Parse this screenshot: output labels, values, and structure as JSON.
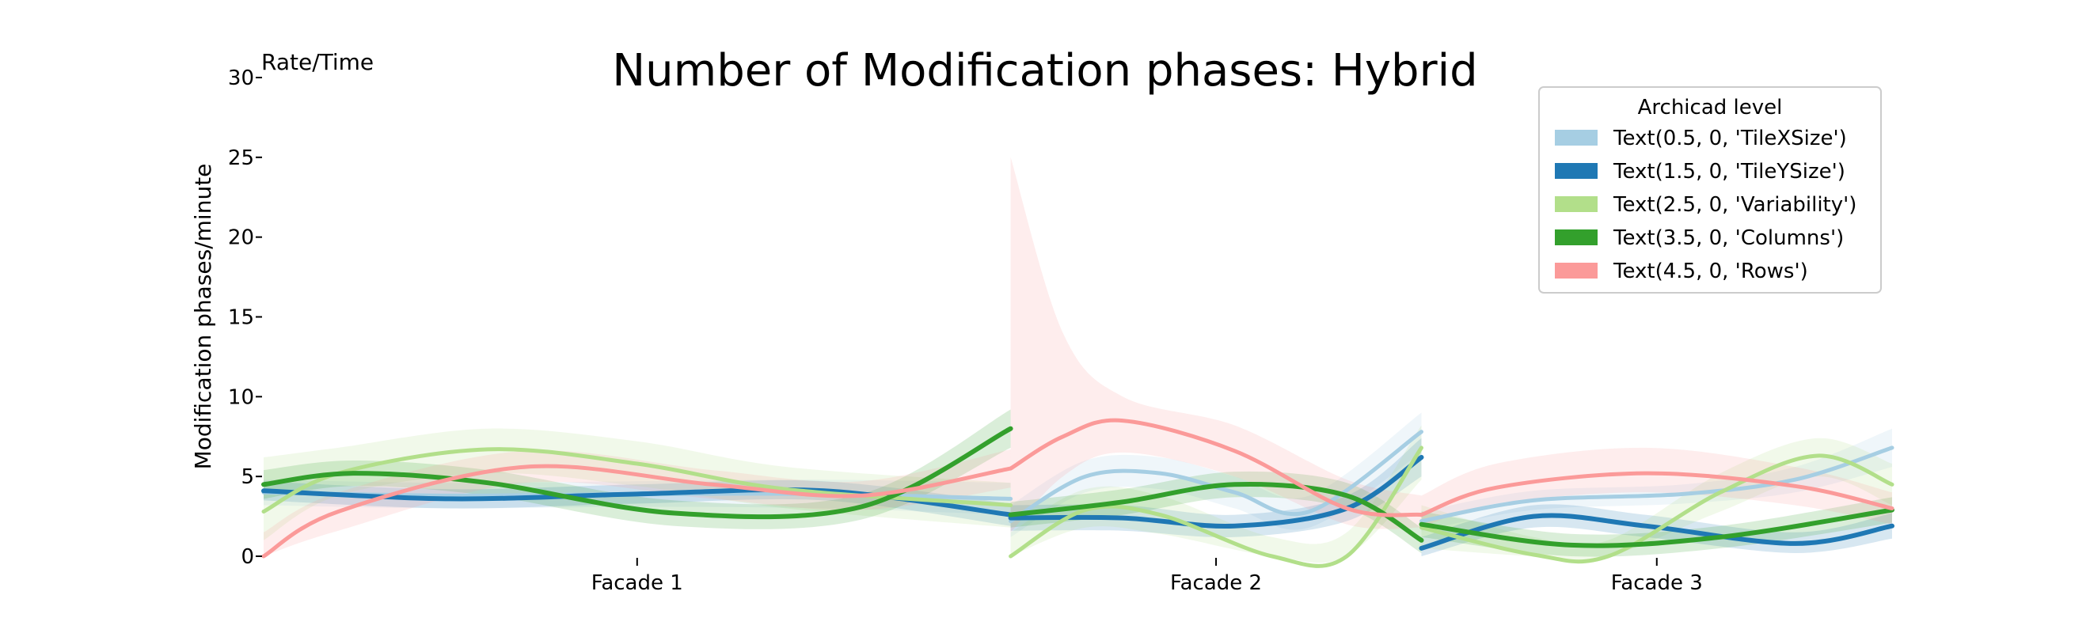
{
  "chart_data": {
    "type": "line",
    "title": "Number of Modification phases: Hybrid",
    "corner_label": "Rate/Time",
    "ylabel": "Modification phases/minute",
    "xlabel": "",
    "ylim": [
      0,
      30
    ],
    "yticks": [
      0,
      5,
      10,
      15,
      20,
      25,
      30
    ],
    "categories": [
      "Facade 1",
      "Facade 2",
      "Facade 3"
    ],
    "segments": [
      {
        "name": "Facade 1",
        "x0": 0,
        "x1": 1,
        "tick": 0.5
      },
      {
        "name": "Facade 2",
        "x0": 1,
        "x1": 1.55,
        "tick": 1.275
      },
      {
        "name": "Facade 3",
        "x0": 1.55,
        "x1": 2.18,
        "tick": 1.865
      }
    ],
    "xlim": [
      0,
      2.18
    ],
    "grid": false,
    "legend": {
      "title": "Archicad level",
      "placement": "top-right",
      "entries": [
        "Text(0.5, 0, 'TileXSize')",
        "Text(1.5, 0, 'TileYSize')",
        "Text(2.5, 0, 'Variability')",
        "Text(3.5, 0, 'Columns')",
        "Text(4.5, 0, 'Rows')"
      ]
    },
    "series": [
      {
        "color": "#a6cee3",
        "width": 5,
        "segments": [
          {
            "x": [
              0,
              0.25,
              0.5,
              0.75,
              1
            ],
            "y": [
              4.0,
              3.8,
              3.9,
              3.9,
              3.6
            ],
            "lower": [
              3.2,
              3.0,
              3.1,
              3.0,
              2.6
            ],
            "upper": [
              4.8,
              4.6,
              4.7,
              4.8,
              4.6
            ]
          },
          {
            "x": [
              1,
              1.1,
              1.2,
              1.3,
              1.4,
              1.55
            ],
            "y": [
              2.2,
              5.0,
              5.2,
              4.0,
              2.8,
              7.8
            ],
            "lower": [
              1.2,
              4.0,
              4.2,
              3.0,
              1.8,
              6.5
            ],
            "upper": [
              3.2,
              6.0,
              6.2,
              5.0,
              3.8,
              9.0
            ]
          },
          {
            "x": [
              1.55,
              1.7,
              1.9,
              2.05,
              2.18
            ],
            "y": [
              2.2,
              3.5,
              3.9,
              4.8,
              6.8
            ],
            "lower": [
              1.6,
              2.9,
              3.3,
              4.0,
              5.6
            ],
            "upper": [
              2.8,
              4.1,
              4.5,
              5.6,
              8.0
            ]
          }
        ]
      },
      {
        "color": "#1f78b4",
        "width": 6,
        "segments": [
          {
            "x": [
              0,
              0.25,
              0.5,
              0.75,
              1
            ],
            "y": [
              4.1,
              3.6,
              3.9,
              4.1,
              2.6
            ],
            "lower": [
              3.5,
              3.0,
              3.3,
              3.5,
              1.9
            ],
            "upper": [
              4.7,
              4.2,
              4.5,
              4.7,
              3.3
            ]
          },
          {
            "x": [
              1,
              1.15,
              1.3,
              1.45,
              1.55
            ],
            "y": [
              2.4,
              2.4,
              1.9,
              3.0,
              6.2
            ],
            "lower": [
              1.6,
              1.6,
              1.2,
              2.2,
              5.0
            ],
            "upper": [
              3.2,
              3.2,
              2.6,
              3.8,
              7.4
            ]
          },
          {
            "x": [
              1.55,
              1.7,
              1.85,
              2.05,
              2.18
            ],
            "y": [
              0.5,
              2.5,
              1.9,
              0.8,
              1.9
            ],
            "lower": [
              0.0,
              1.8,
              1.2,
              0.2,
              1.1
            ],
            "upper": [
              1.2,
              3.2,
              2.6,
              1.5,
              2.7
            ]
          }
        ]
      },
      {
        "color": "#b2df8a",
        "width": 5,
        "segments": [
          {
            "x": [
              0,
              0.1,
              0.3,
              0.5,
              0.7,
              1
            ],
            "y": [
              2.8,
              5.2,
              6.7,
              5.8,
              4.2,
              3.2
            ],
            "lower": [
              1.0,
              3.8,
              5.2,
              4.4,
              3.0,
              1.8
            ],
            "upper": [
              6.2,
              6.8,
              8.0,
              7.2,
              5.6,
              4.6
            ]
          },
          {
            "x": [
              1,
              1.1,
              1.2,
              1.35,
              1.45,
              1.55
            ],
            "y": [
              0.0,
              2.9,
              2.6,
              0.0,
              0.0,
              6.8
            ],
            "lower": [
              0.0,
              1.8,
              1.4,
              0.0,
              0.0,
              4.8
            ],
            "upper": [
              1.5,
              4.2,
              3.8,
              1.2,
              1.5,
              8.2
            ]
          },
          {
            "x": [
              1.55,
              1.7,
              1.8,
              1.95,
              2.08,
              2.18
            ],
            "y": [
              1.8,
              0.1,
              0.0,
              4.0,
              6.3,
              4.5
            ],
            "lower": [
              0.5,
              0.0,
              0.0,
              2.8,
              5.0,
              3.2
            ],
            "upper": [
              3.2,
              1.2,
              1.0,
              5.2,
              7.4,
              5.8
            ]
          }
        ]
      },
      {
        "color": "#33a02c",
        "width": 6,
        "segments": [
          {
            "x": [
              0,
              0.12,
              0.3,
              0.55,
              0.8,
              1
            ],
            "y": [
              4.5,
              5.2,
              4.6,
              2.7,
              3.1,
              8.0
            ],
            "lower": [
              3.6,
              4.4,
              3.8,
              1.9,
              2.3,
              6.8
            ],
            "upper": [
              5.4,
              6.0,
              5.4,
              3.5,
              3.9,
              9.2
            ]
          },
          {
            "x": [
              1,
              1.15,
              1.3,
              1.45,
              1.55
            ],
            "y": [
              2.6,
              3.4,
              4.5,
              3.8,
              1.0
            ],
            "lower": [
              1.8,
              2.6,
              3.7,
              3.0,
              0.2
            ],
            "upper": [
              3.4,
              4.2,
              5.3,
              4.6,
              1.8
            ]
          },
          {
            "x": [
              1.55,
              1.75,
              1.95,
              2.18
            ],
            "y": [
              2.0,
              0.7,
              1.2,
              2.9
            ],
            "lower": [
              1.2,
              0.0,
              0.5,
              2.1
            ],
            "upper": [
              2.8,
              1.4,
              1.9,
              3.7
            ]
          }
        ]
      },
      {
        "color": "#fb9a99",
        "width": 5,
        "segments": [
          {
            "x": [
              0,
              0.1,
              0.35,
              0.6,
              0.8,
              1
            ],
            "y": [
              0.0,
              2.8,
              5.6,
              4.5,
              3.8,
              5.5
            ],
            "lower": [
              0.0,
              1.6,
              4.6,
              3.6,
              2.9,
              4.3
            ],
            "upper": [
              1.5,
              4.0,
              6.6,
              5.4,
              4.7,
              6.7
            ]
          },
          {
            "x": [
              1,
              1.07,
              1.15,
              1.3,
              1.45,
              1.55
            ],
            "y": [
              5.5,
              7.5,
              8.5,
              6.6,
              3.0,
              2.6
            ],
            "lower": [
              1.5,
              5.0,
              6.5,
              5.0,
              2.0,
              1.8
            ],
            "upper": [
              25.0,
              14.0,
              10.0,
              8.2,
              4.8,
              3.8
            ]
          },
          {
            "x": [
              1.55,
              1.65,
              1.85,
              2.05,
              2.18
            ],
            "y": [
              2.6,
              4.3,
              5.2,
              4.4,
              3.0
            ],
            "lower": [
              1.8,
              3.3,
              4.0,
              3.2,
              2.0
            ],
            "upper": [
              3.8,
              5.8,
              6.8,
              5.6,
              4.0
            ]
          }
        ]
      }
    ]
  }
}
